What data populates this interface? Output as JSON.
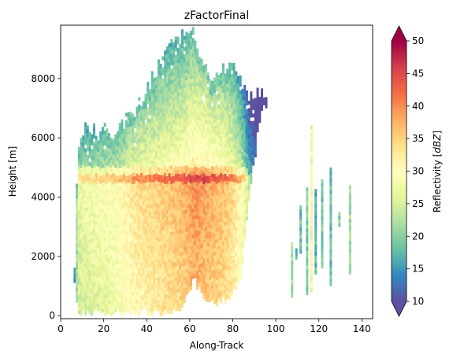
{
  "chart_data": {
    "type": "heatmap",
    "title": "zFactorFinal",
    "xlabel": "Along-Track",
    "ylabel": "Height [m]",
    "xlim": [
      0,
      145
    ],
    "ylim": [
      -100,
      9800
    ],
    "xticks": [
      0,
      20,
      40,
      60,
      80,
      100,
      120,
      140
    ],
    "yticks": [
      0,
      2000,
      4000,
      6000,
      8000
    ],
    "grid": false,
    "colorbar": {
      "label": "Reflectivity [dBZ]",
      "label_main": "Reflectivity ",
      "label_unit": "dBZ",
      "min": 10,
      "max": 50,
      "ticks": [
        10,
        15,
        20,
        25,
        30,
        35,
        40,
        45,
        50
      ],
      "extend": "both",
      "colormap": "Spectral_r"
    },
    "profile": {
      "note_only_for_rendering": false,
      "columns": [
        {
          "x": 6.5,
          "bottom": 900,
          "top": 1800,
          "base": 16
        },
        {
          "x": 8,
          "bottom": 0,
          "top": 5800,
          "base": 26
        },
        {
          "x": 12,
          "bottom": 0,
          "top": 6200,
          "base": 27
        },
        {
          "x": 18,
          "bottom": 0,
          "top": 6300,
          "base": 28
        },
        {
          "x": 25,
          "bottom": 0,
          "top": 6100,
          "base": 29
        },
        {
          "x": 30,
          "bottom": 0,
          "top": 6500,
          "base": 31
        },
        {
          "x": 36,
          "bottom": 0,
          "top": 7000,
          "base": 33
        },
        {
          "x": 42,
          "bottom": 0,
          "top": 7800,
          "base": 34
        },
        {
          "x": 48,
          "bottom": 0,
          "top": 8600,
          "base": 35
        },
        {
          "x": 54,
          "bottom": 0,
          "top": 9300,
          "base": 36
        },
        {
          "x": 58,
          "bottom": 400,
          "top": 9600,
          "base": 37
        },
        {
          "x": 62,
          "bottom": 1200,
          "top": 9500,
          "base": 39
        },
        {
          "x": 66,
          "bottom": 500,
          "top": 8400,
          "base": 38
        },
        {
          "x": 70,
          "bottom": 300,
          "top": 7800,
          "base": 37
        },
        {
          "x": 75,
          "bottom": 400,
          "top": 8200,
          "base": 36
        },
        {
          "x": 80,
          "bottom": 600,
          "top": 8600,
          "base": 34
        },
        {
          "x": 84,
          "bottom": 1300,
          "top": 7900,
          "base": 30
        },
        {
          "x": 88,
          "bottom": 4000,
          "top": 7500,
          "base": 22
        },
        {
          "x": 93,
          "bottom": 6800,
          "top": 7400,
          "base": 18
        },
        {
          "x": 96,
          "bottom": 7100,
          "top": 7500,
          "base": 17
        }
      ],
      "bright_band": {
        "height": 4700,
        "boost": 6
      },
      "isolated_cells": [
        {
          "x": 107,
          "bottom": 600,
          "top": 2400,
          "value": 22
        },
        {
          "x": 109,
          "bottom": 1900,
          "top": 2200,
          "value": 16
        },
        {
          "x": 111,
          "bottom": 2100,
          "top": 3700,
          "value": 18
        },
        {
          "x": 114,
          "bottom": 700,
          "top": 4300,
          "value": 20
        },
        {
          "x": 116,
          "bottom": 800,
          "top": 6400,
          "value": 27
        },
        {
          "x": 118,
          "bottom": 1400,
          "top": 4200,
          "value": 17
        },
        {
          "x": 121,
          "bottom": 1600,
          "top": 4600,
          "value": 19
        },
        {
          "x": 125,
          "bottom": 1000,
          "top": 5000,
          "value": 18
        },
        {
          "x": 129,
          "bottom": 3000,
          "top": 3500,
          "value": 20
        },
        {
          "x": 134,
          "bottom": 1400,
          "top": 4400,
          "value": 22
        }
      ]
    }
  }
}
